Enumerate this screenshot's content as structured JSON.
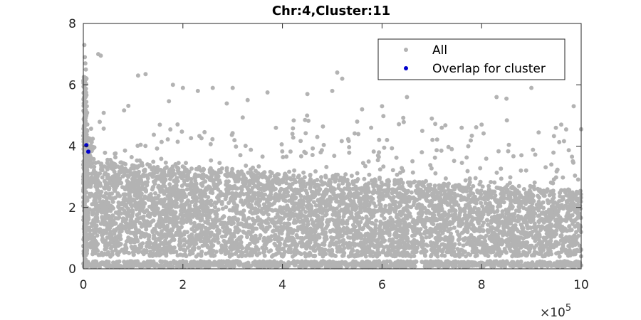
{
  "chart_data": {
    "type": "scatter",
    "title": "Chr:4,Cluster:11",
    "xlabel": "",
    "ylabel": "",
    "xlim": [
      0,
      1000000
    ],
    "ylim": [
      0,
      8
    ],
    "x_ticks": [
      0,
      200000,
      400000,
      600000,
      800000,
      1000000
    ],
    "x_tick_labels": [
      "0",
      "2",
      "4",
      "6",
      "8",
      "10"
    ],
    "x_exponent_label": "×10",
    "x_exponent_power": "5",
    "y_ticks": [
      0,
      2,
      4,
      6,
      8
    ],
    "y_tick_labels": [
      "0",
      "2",
      "4",
      "6",
      "8"
    ],
    "grid": false,
    "legend_position": "top-right",
    "series": [
      {
        "name": "All",
        "color": "#b3b3b3",
        "band_description": "dense cloud roughly between y=0.4 and y=3.5 near x=0, narrowing to y=0.4..2.5 at x=1e6, plus a thin band near y=0.05..0.25",
        "points_outliers": [
          [
            2000,
            7.3
          ],
          [
            3000,
            6.9
          ],
          [
            4000,
            6.7
          ],
          [
            5000,
            6.5
          ],
          [
            30000,
            7.0
          ],
          [
            35000,
            6.95
          ],
          [
            110000,
            6.3
          ],
          [
            125000,
            6.35
          ],
          [
            180000,
            6.0
          ],
          [
            200000,
            5.9
          ],
          [
            230000,
            5.8
          ],
          [
            260000,
            5.9
          ],
          [
            300000,
            5.9
          ],
          [
            330000,
            5.5
          ],
          [
            370000,
            5.75
          ],
          [
            450000,
            5.7
          ],
          [
            500000,
            5.8
          ],
          [
            510000,
            6.4
          ],
          [
            520000,
            6.2
          ],
          [
            560000,
            5.2
          ],
          [
            600000,
            5.3
          ],
          [
            650000,
            5.6
          ],
          [
            700000,
            4.9
          ],
          [
            720000,
            4.6
          ],
          [
            760000,
            4.6
          ],
          [
            800000,
            4.7
          ],
          [
            830000,
            5.6
          ],
          [
            850000,
            5.55
          ],
          [
            900000,
            5.9
          ],
          [
            960000,
            4.7
          ],
          [
            985000,
            5.3
          ],
          [
            1000000,
            4.55
          ],
          [
            420000,
            4.4
          ],
          [
            470000,
            4.3
          ],
          [
            550000,
            4.8
          ],
          [
            610000,
            4.2
          ],
          [
            680000,
            3.8
          ],
          [
            740000,
            3.9
          ],
          [
            880000,
            3.7
          ],
          [
            940000,
            3.4
          ]
        ]
      },
      {
        "name": "Overlap for cluster",
        "color": "#0000cc",
        "points": [
          [
            6000,
            4.03
          ],
          [
            10000,
            3.82
          ]
        ]
      }
    ]
  }
}
